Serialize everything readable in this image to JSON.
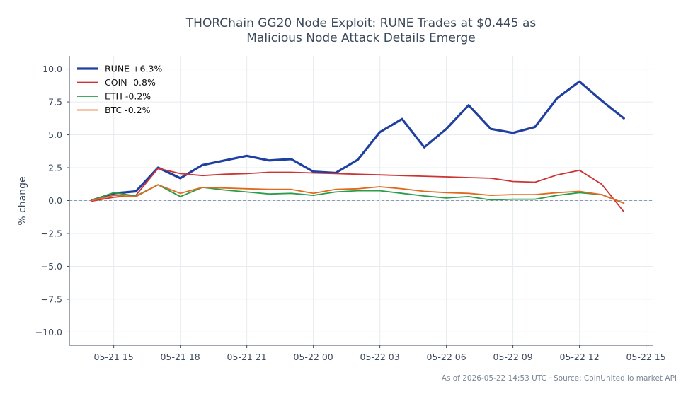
{
  "chart_data": {
    "type": "line",
    "title_lines": [
      "THORChain GG20 Node Exploit: RUNE Trades at $0.445 as",
      "Malicious Node Attack Details Emerge"
    ],
    "ylabel": "% change",
    "ylim": [
      -11,
      11
    ],
    "yticks": [
      -10,
      -7.5,
      -5,
      -2.5,
      0,
      2.5,
      5,
      7.5,
      10
    ],
    "ytick_labels": [
      "−10.0",
      "−7.5",
      "−5.0",
      "−2.5",
      "0.0",
      "2.5",
      "5.0",
      "7.5",
      "10.0"
    ],
    "xlim": [
      -1,
      25.3
    ],
    "xticks": [
      1,
      4,
      7,
      10,
      13,
      16,
      19,
      22,
      25
    ],
    "xtick_labels": [
      "05-21 15",
      "05-21 18",
      "05-21 21",
      "05-22 00",
      "05-22 03",
      "05-22 06",
      "05-22 09",
      "05-22 12",
      "05-22 15"
    ],
    "grid": true,
    "zero_line": true,
    "legend_position": "top-left",
    "footer": "As of 2026-05-22 14:53 UTC · Source: CoinUnited.io market API",
    "series": [
      {
        "name": "RUNE +6.3%",
        "color": "#2040a0",
        "width": 3.2,
        "x": [
          0,
          1,
          2,
          3,
          4,
          5,
          6,
          7,
          8,
          9,
          10,
          11,
          12,
          13,
          14,
          15,
          16,
          17,
          18,
          19,
          20,
          21,
          22,
          23,
          24
        ],
        "values": [
          0.0,
          0.55,
          0.7,
          2.5,
          1.7,
          2.7,
          3.05,
          3.4,
          3.05,
          3.15,
          2.2,
          2.1,
          3.1,
          5.2,
          6.2,
          4.05,
          5.45,
          7.25,
          5.45,
          5.15,
          5.6,
          7.8,
          9.05,
          7.6,
          6.25
        ]
      },
      {
        "name": "COIN -0.8%",
        "color": "#cc3333",
        "width": 1.8,
        "x": [
          0,
          1,
          2,
          3,
          4,
          5,
          6,
          7,
          8,
          9,
          10,
          11,
          12,
          13,
          14,
          15,
          16,
          17,
          18,
          19,
          20,
          21,
          22,
          23,
          24
        ],
        "values": [
          -0.05,
          0.25,
          0.4,
          2.45,
          2.05,
          1.9,
          2.0,
          2.05,
          2.15,
          2.15,
          2.1,
          2.05,
          2.0,
          1.95,
          1.9,
          1.85,
          1.8,
          1.75,
          1.7,
          1.45,
          1.4,
          1.95,
          2.3,
          1.25,
          -0.85
        ]
      },
      {
        "name": "ETH -0.2%",
        "color": "#2a9d4a",
        "width": 1.8,
        "x": [
          0,
          1,
          2,
          3,
          4,
          5,
          6,
          7,
          8,
          9,
          10,
          11,
          12,
          13,
          14,
          15,
          16,
          17,
          18,
          19,
          20,
          21,
          22,
          23,
          24
        ],
        "values": [
          0.0,
          0.6,
          0.35,
          1.2,
          0.3,
          1.0,
          0.8,
          0.65,
          0.5,
          0.55,
          0.4,
          0.65,
          0.75,
          0.75,
          0.55,
          0.35,
          0.2,
          0.3,
          0.05,
          0.1,
          0.1,
          0.4,
          0.6,
          0.45,
          -0.2
        ]
      },
      {
        "name": "BTC -0.2%",
        "color": "#e06a1f",
        "width": 1.8,
        "x": [
          0,
          1,
          2,
          3,
          4,
          5,
          6,
          7,
          8,
          9,
          10,
          11,
          12,
          13,
          14,
          15,
          16,
          17,
          18,
          19,
          20,
          21,
          22,
          23,
          24
        ],
        "values": [
          0.0,
          0.4,
          0.3,
          1.2,
          0.55,
          1.0,
          0.95,
          0.9,
          0.85,
          0.85,
          0.55,
          0.85,
          0.9,
          1.05,
          0.9,
          0.7,
          0.6,
          0.55,
          0.4,
          0.45,
          0.45,
          0.6,
          0.7,
          0.45,
          -0.2
        ]
      }
    ]
  }
}
